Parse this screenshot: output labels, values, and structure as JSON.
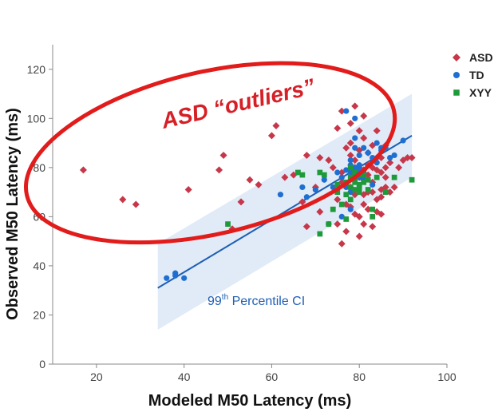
{
  "chart_data": {
    "type": "scatter",
    "xlabel": "Modeled M50 Latency (ms)",
    "ylabel": "Observed M50 Latency (ms)",
    "xlim": [
      10,
      100
    ],
    "ylim": [
      0,
      130
    ],
    "xticks": [
      20,
      40,
      60,
      80,
      100
    ],
    "yticks": [
      0,
      20,
      40,
      60,
      80,
      100,
      120
    ],
    "colors": {
      "ASD": "#c7374a",
      "TD": "#1f6fd1",
      "XYY": "#1f9a3a",
      "fit": "#1f5fb4",
      "ci_fill": "#dbe8f6",
      "ellipse": "#e21b1b"
    },
    "fit_line": {
      "x": [
        34,
        92
      ],
      "y": [
        31,
        93
      ]
    },
    "ci_band": {
      "x": [
        34,
        92
      ],
      "lower": [
        14,
        76
      ],
      "upper": [
        49,
        110
      ]
    },
    "annotations": {
      "outliers": "ASD “outliers”",
      "ci_main": "99",
      "ci_sup": "th",
      "ci_rest": " Percentile CI"
    },
    "outlier_ellipse": {
      "center": [
        46,
        86
      ],
      "rx_units": 43,
      "ry_units": 33,
      "rotation_deg": -13
    },
    "series": [
      {
        "name": "ASD",
        "marker": "diamond",
        "points": [
          [
            17,
            79
          ],
          [
            26,
            67
          ],
          [
            29,
            65
          ],
          [
            41,
            71
          ],
          [
            48,
            79
          ],
          [
            49,
            85
          ],
          [
            51,
            55
          ],
          [
            53,
            66
          ],
          [
            55,
            75
          ],
          [
            57,
            73
          ],
          [
            60,
            93
          ],
          [
            61,
            97
          ],
          [
            63,
            76
          ],
          [
            65,
            77
          ],
          [
            67,
            66
          ],
          [
            68,
            56
          ],
          [
            68,
            85
          ],
          [
            70,
            72
          ],
          [
            71,
            84
          ],
          [
            71,
            62
          ],
          [
            73,
            83
          ],
          [
            74,
            80
          ],
          [
            75,
            67
          ],
          [
            75,
            57
          ],
          [
            76,
            74
          ],
          [
            76,
            49
          ],
          [
            76,
            103
          ],
          [
            77,
            54
          ],
          [
            77,
            65
          ],
          [
            78,
            85
          ],
          [
            78,
            90
          ],
          [
            78,
            98
          ],
          [
            78,
            72
          ],
          [
            79,
            61
          ],
          [
            79,
            69
          ],
          [
            79,
            83
          ],
          [
            79,
            105
          ],
          [
            80,
            87
          ],
          [
            80,
            76
          ],
          [
            80,
            60
          ],
          [
            80,
            95
          ],
          [
            80,
            52
          ],
          [
            81,
            92
          ],
          [
            81,
            79
          ],
          [
            81,
            65
          ],
          [
            81,
            57
          ],
          [
            81,
            101
          ],
          [
            82,
            86
          ],
          [
            82,
            70
          ],
          [
            82,
            63
          ],
          [
            82,
            81
          ],
          [
            83,
            74
          ],
          [
            83,
            89
          ],
          [
            83,
            56
          ],
          [
            84,
            79
          ],
          [
            84,
            67
          ],
          [
            84,
            95
          ],
          [
            85,
            84
          ],
          [
            85,
            71
          ],
          [
            85,
            61
          ],
          [
            86,
            89
          ],
          [
            86,
            76
          ],
          [
            86,
            80
          ],
          [
            87,
            70
          ],
          [
            88,
            72
          ],
          [
            89,
            80
          ],
          [
            90,
            83
          ],
          [
            91,
            84
          ],
          [
            92,
            84
          ],
          [
            78,
            79
          ],
          [
            79,
            80
          ],
          [
            80,
            80
          ],
          [
            80,
            78
          ],
          [
            81,
            75
          ],
          [
            82,
            77
          ],
          [
            83,
            80
          ],
          [
            84,
            84
          ],
          [
            85,
            78
          ],
          [
            86,
            72
          ],
          [
            87,
            82
          ],
          [
            76,
            78
          ],
          [
            77,
            88
          ],
          [
            75,
            96
          ],
          [
            78,
            64
          ],
          [
            83,
            70
          ],
          [
            81,
            69
          ],
          [
            84,
            62
          ],
          [
            85,
            68
          ]
        ]
      },
      {
        "name": "TD",
        "marker": "circle",
        "points": [
          [
            36,
            35
          ],
          [
            38,
            36
          ],
          [
            38,
            37
          ],
          [
            40,
            35
          ],
          [
            62,
            69
          ],
          [
            67,
            72
          ],
          [
            68,
            68
          ],
          [
            70,
            71
          ],
          [
            72,
            75
          ],
          [
            73,
            57
          ],
          [
            74,
            72
          ],
          [
            75,
            78
          ],
          [
            76,
            76
          ],
          [
            76,
            60
          ],
          [
            77,
            72
          ],
          [
            77,
            103
          ],
          [
            78,
            78
          ],
          [
            78,
            70
          ],
          [
            78,
            63
          ],
          [
            78,
            83
          ],
          [
            79,
            76
          ],
          [
            79,
            80
          ],
          [
            79,
            92
          ],
          [
            79,
            100
          ],
          [
            80,
            78
          ],
          [
            80,
            79
          ],
          [
            80,
            85
          ],
          [
            81,
            78
          ],
          [
            81,
            75
          ],
          [
            81,
            88
          ],
          [
            82,
            86
          ],
          [
            83,
            84
          ],
          [
            83,
            73
          ],
          [
            84,
            82
          ],
          [
            84,
            90
          ],
          [
            85,
            87
          ],
          [
            85,
            88
          ],
          [
            86,
            88
          ],
          [
            87,
            84
          ],
          [
            88,
            85
          ],
          [
            90,
            91
          ],
          [
            77,
            79
          ],
          [
            79,
            77
          ],
          [
            80,
            81
          ],
          [
            78,
            81
          ],
          [
            79,
            88
          ],
          [
            80,
            76
          ]
        ]
      },
      {
        "name": "XYY",
        "marker": "square",
        "points": [
          [
            50,
            57
          ],
          [
            66,
            78
          ],
          [
            67,
            77
          ],
          [
            71,
            53
          ],
          [
            71,
            78
          ],
          [
            72,
            77
          ],
          [
            73,
            57
          ],
          [
            74,
            63
          ],
          [
            75,
            73
          ],
          [
            75,
            70
          ],
          [
            76,
            65
          ],
          [
            77,
            69
          ],
          [
            77,
            59
          ],
          [
            78,
            67
          ],
          [
            78,
            76
          ],
          [
            78,
            80
          ],
          [
            79,
            74
          ],
          [
            79,
            78
          ],
          [
            79,
            75
          ],
          [
            80,
            72
          ],
          [
            80,
            77
          ],
          [
            80,
            70
          ],
          [
            81,
            74
          ],
          [
            82,
            71
          ],
          [
            83,
            63
          ],
          [
            83,
            60
          ],
          [
            84,
            76
          ],
          [
            86,
            70
          ],
          [
            88,
            76
          ],
          [
            92,
            75
          ],
          [
            80,
            73
          ],
          [
            79,
            71
          ],
          [
            78,
            72
          ],
          [
            81,
            77
          ],
          [
            77,
            74
          ],
          [
            82,
            75
          ]
        ]
      }
    ]
  }
}
